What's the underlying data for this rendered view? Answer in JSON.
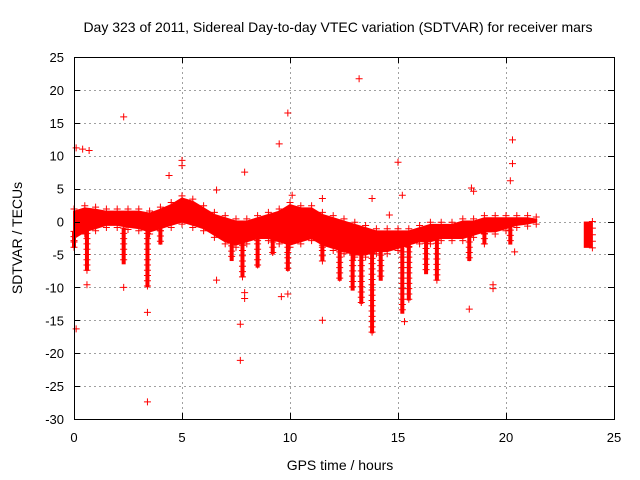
{
  "chart_data": {
    "type": "scatter",
    "title": "Day 323 of 2011, Sidereal Day-to-day VTEC variation (SDTVAR) for receiver mars",
    "xlabel": "GPS time / hours",
    "ylabel": "SDTVAR / TECUs",
    "xlim": [
      0,
      25
    ],
    "ylim": [
      -30,
      25
    ],
    "xticks": [
      0,
      5,
      10,
      15,
      20,
      25
    ],
    "yticks": [
      -30,
      -25,
      -20,
      -15,
      -10,
      -5,
      0,
      5,
      10,
      15,
      20,
      25
    ],
    "xtick_labels": [
      "0",
      "5",
      "10",
      "15",
      "20",
      "25"
    ],
    "ytick_labels": [
      "-30",
      "-25",
      "-20",
      "-15",
      "-10",
      "-5",
      "0",
      "5",
      "10",
      "15",
      "20",
      "25"
    ],
    "grid": true,
    "marker": "+",
    "color": "#ff0000",
    "series": [
      {
        "name": "SDTVAR",
        "band": {
          "x": [
            0.0,
            0.5,
            1.0,
            1.5,
            2.0,
            2.5,
            3.0,
            3.5,
            4.0,
            4.5,
            5.0,
            5.5,
            6.0,
            6.5,
            7.0,
            7.5,
            8.0,
            8.5,
            9.0,
            9.5,
            10.0,
            10.5,
            11.0,
            11.5,
            12.0,
            12.5,
            13.0,
            13.5,
            14.0,
            14.5,
            15.0,
            15.5,
            16.0,
            16.5,
            17.0,
            17.5,
            18.0,
            18.5,
            19.0,
            19.5,
            20.0,
            20.5,
            21.0,
            21.4
          ],
          "low": [
            -2.5,
            -1.5,
            -1.0,
            -0.5,
            -0.5,
            -0.8,
            -1.0,
            -1.5,
            -1.0,
            -0.5,
            0.0,
            -0.5,
            -1.0,
            -2.0,
            -3.0,
            -3.5,
            -3.0,
            -2.5,
            -2.5,
            -3.0,
            -3.5,
            -3.0,
            -2.5,
            -3.5,
            -4.0,
            -4.5,
            -5.0,
            -5.0,
            -4.5,
            -4.5,
            -4.0,
            -3.5,
            -3.0,
            -3.0,
            -2.5,
            -2.5,
            -2.5,
            -2.0,
            -1.5,
            -1.5,
            -1.0,
            -0.5,
            -0.3,
            0.0
          ],
          "high": [
            1.5,
            2.0,
            1.8,
            1.5,
            1.5,
            1.5,
            1.5,
            1.2,
            1.8,
            2.5,
            3.5,
            3.0,
            2.0,
            1.0,
            0.5,
            0.0,
            0.0,
            0.5,
            1.0,
            1.5,
            2.5,
            2.0,
            2.0,
            1.0,
            0.5,
            0.0,
            -0.5,
            -1.0,
            -1.5,
            -1.5,
            -1.5,
            -1.5,
            -1.0,
            -0.5,
            -0.5,
            -0.5,
            0.0,
            0.0,
            0.5,
            0.5,
            0.5,
            0.5,
            0.5,
            0.3
          ]
        },
        "tails": [
          {
            "x": 0.0,
            "from": -1.5,
            "to": -4.0
          },
          {
            "x": 0.6,
            "from": -1.0,
            "to": -7.5
          },
          {
            "x": 2.3,
            "from": -1.0,
            "to": -6.5
          },
          {
            "x": 3.4,
            "from": -1.0,
            "to": -10.0
          },
          {
            "x": 4.0,
            "from": 1.0,
            "to": -3.5
          },
          {
            "x": 7.3,
            "from": -0.5,
            "to": -6.0
          },
          {
            "x": 7.8,
            "from": -2.0,
            "to": -8.5
          },
          {
            "x": 8.5,
            "from": -1.0,
            "to": -7.0
          },
          {
            "x": 9.2,
            "from": -1.5,
            "to": -5.0
          },
          {
            "x": 9.9,
            "from": -1.5,
            "to": -7.5
          },
          {
            "x": 11.5,
            "from": -2.0,
            "to": -6.0
          },
          {
            "x": 12.3,
            "from": -3.0,
            "to": -9.0
          },
          {
            "x": 12.9,
            "from": -3.5,
            "to": -10.5
          },
          {
            "x": 13.3,
            "from": -3.5,
            "to": -12.5
          },
          {
            "x": 13.8,
            "from": -4.0,
            "to": -17.0
          },
          {
            "x": 14.2,
            "from": -3.5,
            "to": -9.0
          },
          {
            "x": 15.2,
            "from": -3.0,
            "to": -14.0
          },
          {
            "x": 15.5,
            "from": -3.0,
            "to": -12.0
          },
          {
            "x": 16.3,
            "from": -2.5,
            "to": -8.0
          },
          {
            "x": 16.8,
            "from": -2.5,
            "to": -9.0
          },
          {
            "x": 18.3,
            "from": -1.5,
            "to": -6.0
          },
          {
            "x": 19.0,
            "from": -1.0,
            "to": -3.5
          },
          {
            "x": 20.2,
            "from": -0.5,
            "to": -3.5
          }
        ],
        "late_segment": {
          "x_start": 23.6,
          "x_end": 24.0,
          "low": -4.0,
          "high": 0.0
        },
        "outliers": [
          [
            0.1,
            11.2
          ],
          [
            0.4,
            11.0
          ],
          [
            0.7,
            10.8
          ],
          [
            0.1,
            -16.3
          ],
          [
            0.6,
            -9.6
          ],
          [
            2.3,
            15.9
          ],
          [
            2.3,
            -10.0
          ],
          [
            3.4,
            -13.8
          ],
          [
            3.4,
            -27.4
          ],
          [
            4.4,
            7.0
          ],
          [
            5.0,
            9.3
          ],
          [
            5.0,
            8.5
          ],
          [
            6.6,
            4.8
          ],
          [
            6.6,
            -8.9
          ],
          [
            7.7,
            -15.6
          ],
          [
            7.7,
            -21.1
          ],
          [
            7.9,
            7.5
          ],
          [
            7.9,
            -11.7
          ],
          [
            7.9,
            -10.8
          ],
          [
            9.5,
            11.8
          ],
          [
            9.6,
            -11.4
          ],
          [
            9.9,
            16.5
          ],
          [
            9.9,
            -11.0
          ],
          [
            10.1,
            4.0
          ],
          [
            11.5,
            3.5
          ],
          [
            11.5,
            -15.0
          ],
          [
            13.2,
            21.7
          ],
          [
            13.8,
            3.5
          ],
          [
            14.6,
            1.0
          ],
          [
            15.0,
            9.0
          ],
          [
            15.2,
            4.0
          ],
          [
            15.3,
            -15.2
          ],
          [
            18.3,
            -13.3
          ],
          [
            18.4,
            5.1
          ],
          [
            18.5,
            4.6
          ],
          [
            19.4,
            -9.6
          ],
          [
            19.4,
            -10.2
          ],
          [
            20.2,
            6.2
          ],
          [
            20.3,
            12.4
          ],
          [
            20.3,
            8.8
          ],
          [
            20.4,
            -4.6
          ]
        ]
      }
    ]
  }
}
